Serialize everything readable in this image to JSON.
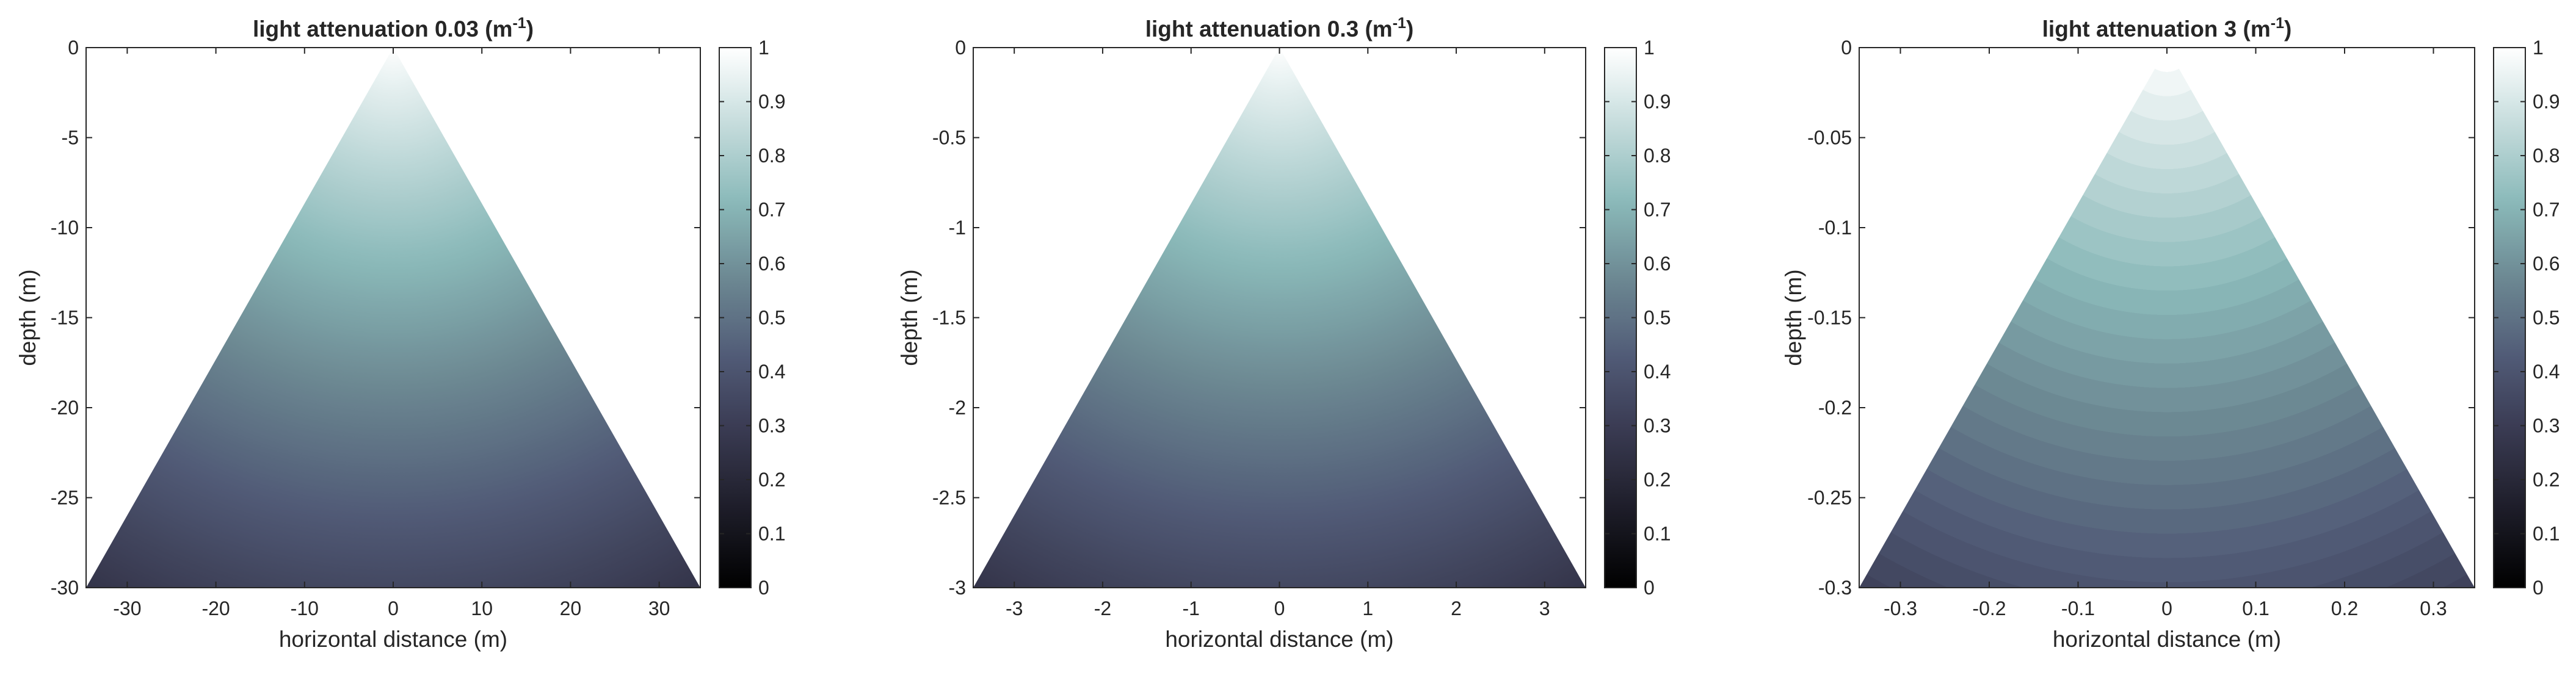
{
  "colors": {
    "colormap": [
      "#000000",
      "#1d1c28",
      "#383950",
      "#515b77",
      "#6c8892",
      "#8ab9b9",
      "#c5dcdc",
      "#ffffff"
    ],
    "axis": "#262626",
    "background": "#ffffff"
  },
  "chart_data": [
    {
      "type": "heatmap",
      "title": "light attenuation 0.03 (m",
      "title_superscript": "-1",
      "title_suffix": ")",
      "attenuation": 0.03,
      "xlabel": "horizontal distance (m)",
      "ylabel": "depth (m)",
      "xlim": [
        -34.64,
        34.64
      ],
      "ylim": [
        -30,
        0
      ],
      "xticks": [
        -30,
        -20,
        -10,
        0,
        10,
        20,
        30
      ],
      "xtick_labels": [
        "-30",
        "-20",
        "-10",
        "0",
        "10",
        "20",
        "30"
      ],
      "yticks": [
        0,
        -5,
        -10,
        -15,
        -20,
        -25,
        -30
      ],
      "ytick_labels": [
        "0",
        "-5",
        "-10",
        "-15",
        "-20",
        "-25",
        "-30"
      ],
      "region": "triangle with apex at (0, 0) and base from (-34.64, -30) to (34.64, -30)",
      "value_range": [
        0.25,
        1
      ],
      "banded": false,
      "colorbar": {
        "clim": [
          0,
          1
        ],
        "ticks": [
          0,
          0.1,
          0.2,
          0.3,
          0.4,
          0.5,
          0.6,
          0.7,
          0.8,
          0.9,
          1
        ],
        "tick_labels": [
          "0",
          "0.1",
          "0.2",
          "0.3",
          "0.4",
          "0.5",
          "0.6",
          "0.7",
          "0.8",
          "0.9",
          "1"
        ]
      }
    },
    {
      "type": "heatmap",
      "title": "light attenuation 0.3 (m",
      "title_superscript": "-1",
      "title_suffix": ")",
      "attenuation": 0.3,
      "xlabel": "horizontal distance (m)",
      "ylabel": "depth (m)",
      "xlim": [
        -3.464,
        3.464
      ],
      "ylim": [
        -3,
        0
      ],
      "xticks": [
        -3,
        -2,
        -1,
        0,
        1,
        2,
        3
      ],
      "xtick_labels": [
        "-3",
        "-2",
        "-1",
        "0",
        "1",
        "2",
        "3"
      ],
      "yticks": [
        0,
        -0.5,
        -1,
        -1.5,
        -2,
        -2.5,
        -3
      ],
      "ytick_labels": [
        "0",
        "-0.5",
        "-1",
        "-1.5",
        "-2",
        "-2.5",
        "-3"
      ],
      "region": "triangle with apex at (0, 0) and base from (-3.464, -3) to (3.464, -3)",
      "value_range": [
        0.25,
        1
      ],
      "banded": false,
      "colorbar": {
        "clim": [
          0,
          1
        ],
        "ticks": [
          0,
          0.1,
          0.2,
          0.3,
          0.4,
          0.5,
          0.6,
          0.7,
          0.8,
          0.9,
          1
        ],
        "tick_labels": [
          "0",
          "0.1",
          "0.2",
          "0.3",
          "0.4",
          "0.5",
          "0.6",
          "0.7",
          "0.8",
          "0.9",
          "1"
        ]
      }
    },
    {
      "type": "heatmap",
      "title": "light attenuation 3 (m",
      "title_superscript": "-1",
      "title_suffix": ")",
      "attenuation": 3,
      "xlabel": "horizontal distance (m)",
      "ylabel": "depth (m)",
      "xlim": [
        -0.3464,
        0.3464
      ],
      "ylim": [
        -0.3,
        0
      ],
      "xticks": [
        -0.3,
        -0.2,
        -0.1,
        0,
        0.1,
        0.2,
        0.3
      ],
      "xtick_labels": [
        "-0.3",
        "-0.2",
        "-0.1",
        "0",
        "0.1",
        "0.2",
        "0.3"
      ],
      "yticks": [
        0,
        -0.05,
        -0.1,
        -0.15,
        -0.2,
        -0.25,
        -0.3
      ],
      "ytick_labels": [
        "0",
        "-0.05",
        "-0.1",
        "-0.15",
        "-0.2",
        "-0.25",
        "-0.3"
      ],
      "region": "triangle with apex at (0, 0) and base from (-0.3464, -0.3) to (0.3464, -0.3)",
      "value_range": [
        0.3,
        1
      ],
      "banded": true,
      "colorbar": {
        "clim": [
          0,
          1
        ],
        "ticks": [
          0,
          0.1,
          0.2,
          0.3,
          0.4,
          0.5,
          0.6,
          0.7,
          0.8,
          0.9,
          1
        ],
        "tick_labels": [
          "0",
          "0.1",
          "0.2",
          "0.3",
          "0.4",
          "0.5",
          "0.6",
          "0.7",
          "0.8",
          "0.9",
          "1"
        ]
      }
    }
  ]
}
